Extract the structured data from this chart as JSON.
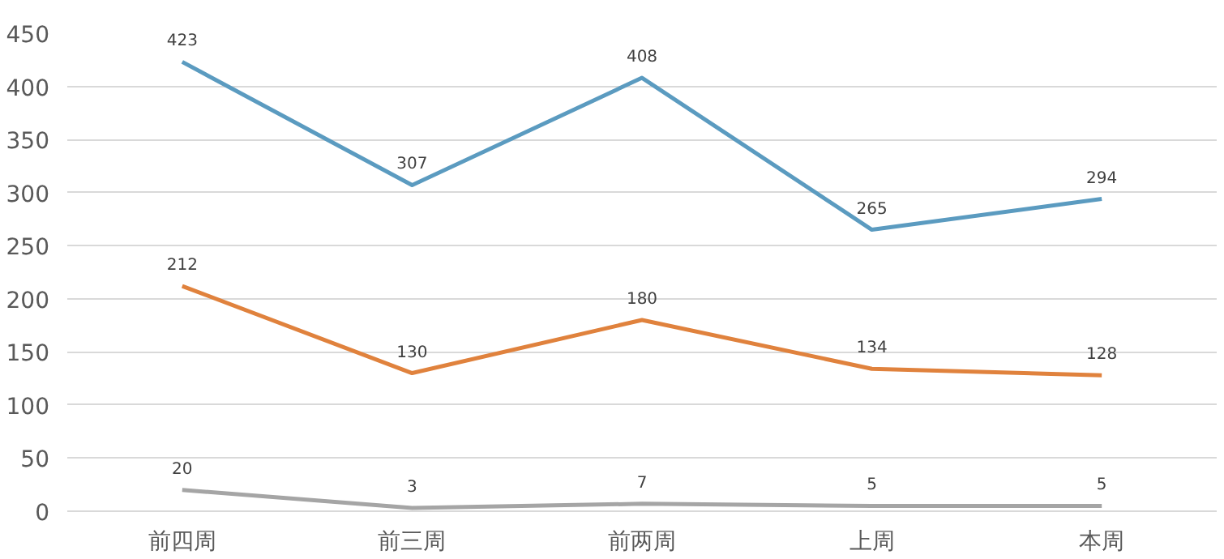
{
  "chart_data": {
    "type": "line",
    "categories": [
      "前四周",
      "前三周",
      "前两周",
      "上周",
      "本周"
    ],
    "series": [
      {
        "color": "#5b9bc0",
        "values": [
          423,
          307,
          408,
          265,
          294
        ]
      },
      {
        "color": "#e0823d",
        "values": [
          212,
          130,
          180,
          134,
          128
        ]
      },
      {
        "color": "#a5a5a5",
        "values": [
          20,
          3,
          7,
          5,
          5
        ]
      }
    ],
    "ylim": [
      0,
      450
    ],
    "yticks": [
      0,
      50,
      100,
      150,
      200,
      250,
      300,
      350,
      400,
      450
    ],
    "grid": "y",
    "data_labels": true,
    "marker": "none"
  }
}
